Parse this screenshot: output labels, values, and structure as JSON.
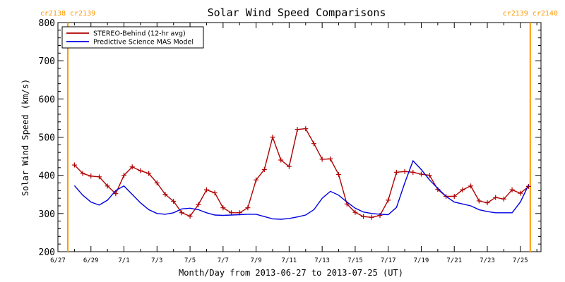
{
  "chart_data": {
    "type": "line",
    "title": "Solar Wind Speed Comparisons",
    "xlabel": "Month/Day from 2013-06-27 to 2013-07-25 (UT)",
    "ylabel": "Solar Wind Speed (km/s)",
    "ylim": [
      200,
      800
    ],
    "xlim_days": [
      0,
      29.25
    ],
    "yticks": [
      200,
      300,
      400,
      500,
      600,
      700,
      800
    ],
    "xticks": [
      {
        "day": 0,
        "label": "6/27"
      },
      {
        "day": 2,
        "label": "6/29"
      },
      {
        "day": 4,
        "label": "7/1"
      },
      {
        "day": 6,
        "label": "7/3"
      },
      {
        "day": 8,
        "label": "7/5"
      },
      {
        "day": 10,
        "label": "7/7"
      },
      {
        "day": 12,
        "label": "7/9"
      },
      {
        "day": 14,
        "label": "7/11"
      },
      {
        "day": 16,
        "label": "7/13"
      },
      {
        "day": 18,
        "label": "7/15"
      },
      {
        "day": 20,
        "label": "7/17"
      },
      {
        "day": 22,
        "label": "7/19"
      },
      {
        "day": 24,
        "label": "7/21"
      },
      {
        "day": 26,
        "label": "7/23"
      },
      {
        "day": 28,
        "label": "7/25"
      }
    ],
    "legend_position": "top-left",
    "grid": false,
    "series": [
      {
        "name": "STEREO-Behind (12-hr avg)",
        "color": "#b00000",
        "marker": "plus",
        "x": [
          1.0,
          1.5,
          2.0,
          2.5,
          3.0,
          3.5,
          4.0,
          4.5,
          5.0,
          5.5,
          6.0,
          6.5,
          7.0,
          7.5,
          8.0,
          8.5,
          9.0,
          9.5,
          10.0,
          10.5,
          11.0,
          11.5,
          12.0,
          12.5,
          13.0,
          13.5,
          14.0,
          14.5,
          15.0,
          15.5,
          16.0,
          16.5,
          17.0,
          17.5,
          18.0,
          18.5,
          19.0,
          19.5,
          20.0,
          20.5,
          21.0,
          21.5,
          22.0,
          22.5,
          23.0,
          23.5,
          24.0,
          24.5,
          25.0,
          25.5,
          26.0,
          26.5,
          27.0,
          27.5,
          28.0,
          28.5
        ],
        "values": [
          427,
          405,
          398,
          396,
          372,
          352,
          400,
          422,
          412,
          405,
          380,
          350,
          332,
          302,
          293,
          323,
          362,
          354,
          315,
          302,
          302,
          315,
          388,
          415,
          500,
          440,
          423,
          520,
          522,
          483,
          442,
          443,
          402,
          325,
          303,
          292,
          290,
          295,
          335,
          408,
          410,
          408,
          403,
          400,
          363,
          345,
          345,
          362,
          372,
          333,
          328,
          342,
          338,
          362,
          353,
          371
        ]
      },
      {
        "name": "Predictive Science MAS Model",
        "color": "#0000e0",
        "marker": "none",
        "x": [
          1.0,
          1.5,
          2.0,
          2.5,
          3.0,
          3.5,
          4.0,
          4.5,
          5.0,
          5.5,
          6.0,
          6.5,
          7.0,
          7.5,
          8.0,
          8.5,
          9.0,
          9.5,
          10.0,
          10.5,
          11.0,
          11.5,
          12.0,
          12.5,
          13.0,
          13.5,
          14.0,
          14.5,
          15.0,
          15.5,
          16.0,
          16.5,
          17.0,
          17.5,
          18.0,
          18.5,
          19.0,
          19.5,
          20.0,
          20.5,
          21.0,
          21.5,
          22.0,
          22.5,
          23.0,
          23.5,
          24.0,
          24.5,
          25.0,
          25.5,
          26.0,
          26.5,
          27.0,
          27.5,
          28.0,
          28.5
        ],
        "values": [
          373,
          348,
          330,
          322,
          335,
          360,
          372,
          350,
          328,
          310,
          300,
          298,
          302,
          312,
          314,
          310,
          302,
          296,
          295,
          296,
          297,
          298,
          298,
          292,
          286,
          285,
          287,
          291,
          296,
          310,
          340,
          358,
          348,
          330,
          314,
          304,
          300,
          298,
          297,
          316,
          380,
          438,
          415,
          388,
          366,
          345,
          330,
          325,
          320,
          310,
          305,
          302,
          302,
          302,
          330,
          375
        ]
      }
    ],
    "annotations": [
      {
        "text": "cr2138 cr2139",
        "day": 0.6,
        "align": "left"
      },
      {
        "text": "cr2139 cr2140",
        "day": 28.6,
        "align": "right"
      }
    ],
    "carrington_lines_days": [
      0.6,
      28.6
    ],
    "carrington_color": "#ff9900"
  }
}
